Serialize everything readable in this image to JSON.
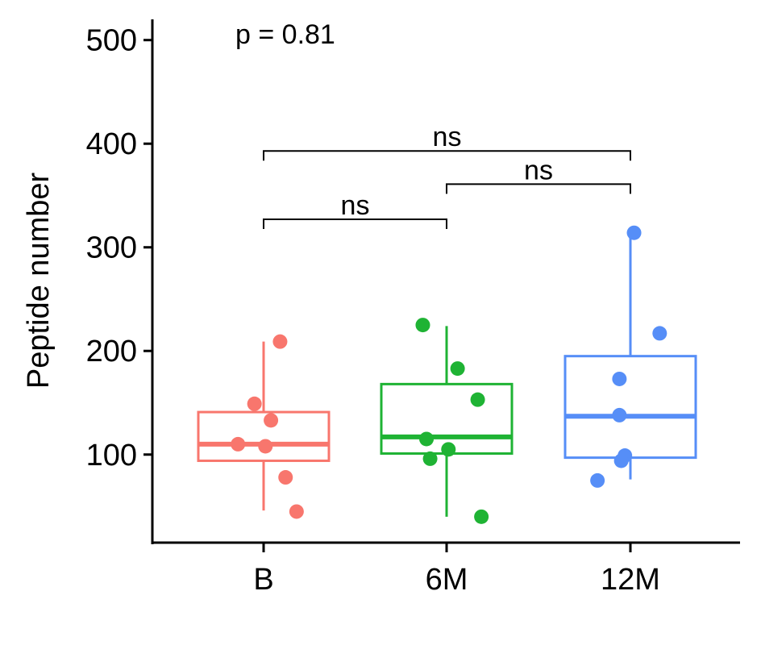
{
  "chart_data": {
    "type": "box",
    "title": "",
    "xlabel": "",
    "ylabel": "Peptide number",
    "ylim": [
      15,
      520
    ],
    "yticks": [
      100,
      200,
      300,
      400,
      500
    ],
    "categories": [
      "B",
      "6M",
      "12M"
    ],
    "annotation": "p = 0.81",
    "groups": [
      {
        "name": "B",
        "color": "#F8766D",
        "box": {
          "whisker_low": 46,
          "q1": 94,
          "median": 110,
          "q3": 141,
          "whisker_high": 209
        },
        "points": [
          {
            "jitter": 0.09,
            "y": 209
          },
          {
            "jitter": -0.05,
            "y": 149
          },
          {
            "jitter": 0.04,
            "y": 133
          },
          {
            "jitter": -0.14,
            "y": 110
          },
          {
            "jitter": 0.01,
            "y": 108
          },
          {
            "jitter": 0.12,
            "y": 78
          },
          {
            "jitter": 0.18,
            "y": 45
          }
        ]
      },
      {
        "name": "6M",
        "color": "#1FB334",
        "box": {
          "whisker_low": 40,
          "q1": 101,
          "median": 117,
          "q3": 168,
          "whisker_high": 224
        },
        "points": [
          {
            "jitter": -0.13,
            "y": 225
          },
          {
            "jitter": 0.06,
            "y": 183
          },
          {
            "jitter": 0.17,
            "y": 153
          },
          {
            "jitter": -0.11,
            "y": 115
          },
          {
            "jitter": 0.01,
            "y": 105
          },
          {
            "jitter": -0.09,
            "y": 96
          },
          {
            "jitter": 0.19,
            "y": 40
          }
        ]
      },
      {
        "name": "12M",
        "color": "#568EF7",
        "box": {
          "whisker_low": 76,
          "q1": 97,
          "median": 137,
          "q3": 195,
          "whisker_high": 314
        },
        "points": [
          {
            "jitter": 0.02,
            "y": 314
          },
          {
            "jitter": 0.16,
            "y": 217
          },
          {
            "jitter": -0.06,
            "y": 173
          },
          {
            "jitter": -0.06,
            "y": 138
          },
          {
            "jitter": -0.03,
            "y": 99
          },
          {
            "jitter": -0.05,
            "y": 94
          },
          {
            "jitter": -0.18,
            "y": 75
          }
        ]
      }
    ],
    "comparisons": [
      {
        "from": "B",
        "to": "6M",
        "y": 327,
        "label": "ns"
      },
      {
        "from": "6M",
        "to": "12M",
        "y": 361,
        "label": "ns"
      },
      {
        "from": "B",
        "to": "12M",
        "y": 393,
        "label": "ns"
      }
    ]
  }
}
